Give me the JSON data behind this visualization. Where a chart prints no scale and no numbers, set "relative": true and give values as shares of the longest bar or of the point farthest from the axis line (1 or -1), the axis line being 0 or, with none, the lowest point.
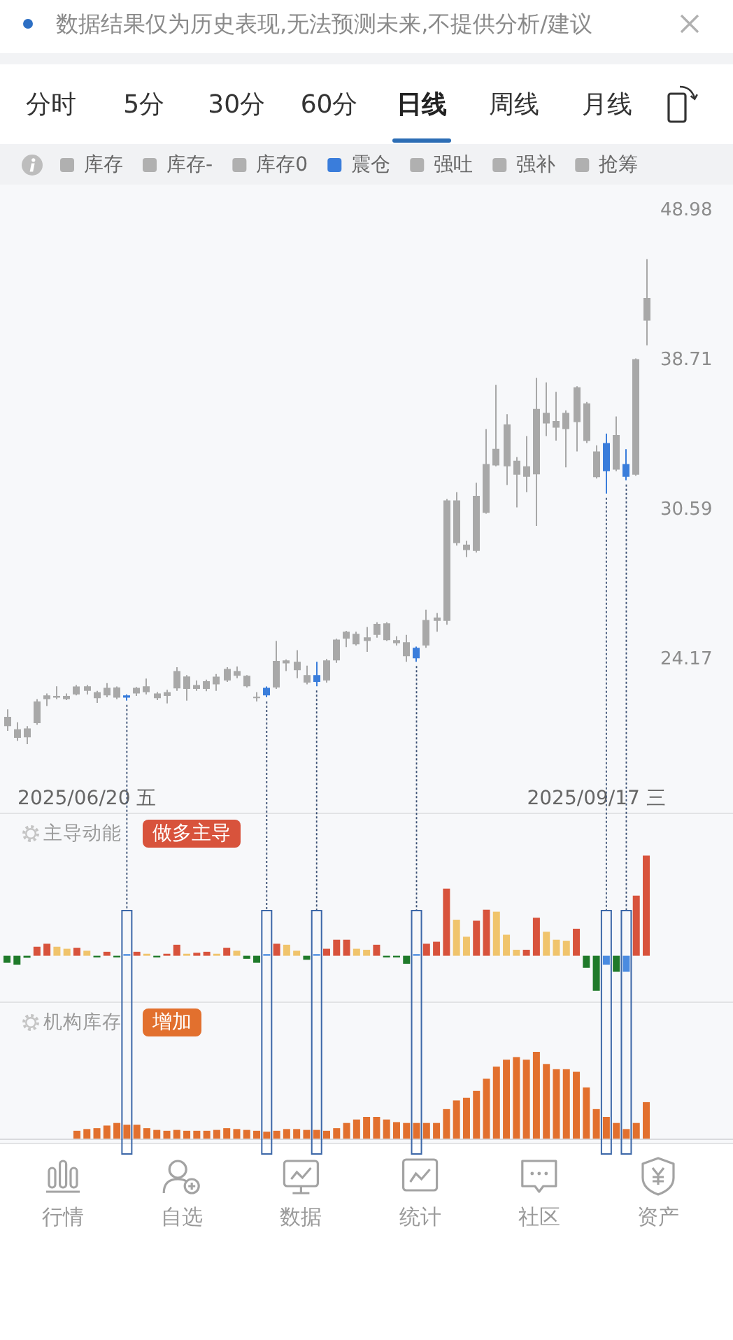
{
  "chart_data": [
    {
      "type": "other",
      "title": "数据结果仅为历史表现,无法预测未来,不提供分析/建议",
      "annotations": [
        "分时",
        "5分",
        "30分",
        "60分",
        "日线",
        "周线",
        "月线"
      ]
    },
    {
      "type": "candlestick",
      "legend": "top",
      "log": true,
      "ylim": [
        19,
        51
      ],
      "yticks": [
        24.17,
        30.59,
        38.71,
        48.98
      ],
      "categories": [
        null,
        null,
        null,
        null,
        null,
        null,
        null,
        null,
        "2025/06/20 五",
        null,
        null,
        null,
        null,
        null,
        null,
        null,
        null,
        null,
        null,
        null,
        null,
        null,
        null,
        null,
        null,
        null,
        null,
        null,
        null,
        null,
        null,
        null,
        null,
        null,
        null,
        null,
        null,
        null,
        null,
        null,
        null,
        null,
        null,
        null,
        null,
        null,
        null,
        null,
        null,
        null,
        null,
        null,
        null,
        null,
        null,
        null,
        null,
        null,
        null,
        "2025/09/17 三",
        null,
        null,
        null,
        null,
        null
      ],
      "series": [
        {
          "color": "#a8a8a8",
          "ohlc": [
            [
              21.77,
              22.35,
              21.61,
              22.09
            ],
            [
              21.37,
              21.9,
              21.27,
              21.66
            ],
            [
              21.39,
              21.77,
              21.16,
              21.69
            ],
            [
              21.87,
              22.71,
              21.82,
              22.63
            ],
            [
              22.71,
              22.92,
              22.47,
              22.85
            ],
            [
              22.77,
              23.18,
              22.71,
              22.83
            ],
            [
              22.71,
              22.92,
              22.68,
              22.83
            ],
            [
              22.88,
              23.22,
              22.85,
              23.17
            ],
            [
              23.01,
              23.22,
              22.88,
              23.18
            ],
            [
              22.75,
              23.01,
              22.58,
              22.96
            ],
            [
              22.85,
              23.29,
              22.78,
              23.12
            ],
            [
              22.77,
              23.17,
              22.71,
              23.13
            ],
            null,
            [
              22.92,
              23.15,
              22.83,
              23.12
            ],
            [
              22.96,
              23.46,
              22.88,
              23.18
            ],
            [
              22.75,
              22.97,
              22.68,
              22.92
            ],
            [
              22.83,
              23.05,
              22.56,
              22.96
            ],
            [
              23.1,
              23.88,
              23.01,
              23.74
            ],
            [
              23.08,
              23.59,
              22.66,
              23.54
            ],
            [
              23.08,
              23.39,
              23.01,
              23.22
            ],
            [
              23.08,
              23.42,
              23.0,
              23.36
            ],
            [
              23.25,
              23.63,
              23.01,
              23.53
            ],
            [
              23.39,
              23.88,
              23.34,
              23.82
            ],
            [
              23.56,
              23.91,
              23.47,
              23.74
            ],
            [
              23.18,
              23.59,
              23.13,
              23.56
            ],
            [
              22.75,
              22.96,
              22.63,
              22.8
            ],
            null,
            [
              23.13,
              24.89,
              23.08,
              24.12
            ],
            [
              24.03,
              24.17,
              23.74,
              24.14
            ],
            [
              23.77,
              24.53,
              23.47,
              24.09
            ],
            [
              23.31,
              23.94,
              23.25,
              23.59
            ],
            null,
            [
              23.39,
              24.19,
              23.31,
              24.14
            ],
            [
              24.14,
              24.98,
              24.05,
              24.94
            ],
            [
              24.98,
              25.29,
              24.65,
              25.25
            ],
            [
              24.76,
              25.25,
              24.71,
              25.17
            ],
            [
              24.89,
              25.44,
              24.47,
              25.03
            ],
            [
              25.13,
              25.63,
              25.02,
              25.57
            ],
            [
              24.92,
              25.63,
              24.89,
              25.59
            ],
            [
              24.8,
              25.07,
              24.71,
              24.92
            ],
            [
              24.3,
              25.13,
              24.09,
              24.84
            ],
            null,
            [
              24.71,
              26.14,
              24.62,
              25.72
            ],
            [
              25.69,
              26.01,
              25.25,
              25.82
            ],
            [
              25.69,
              31.11,
              25.53,
              31.04
            ],
            [
              29.03,
              31.45,
              28.92,
              31.04
            ],
            [
              28.71,
              29.13,
              28.4,
              28.96
            ],
            [
              28.67,
              31.92,
              28.6,
              31.27
            ],
            [
              30.44,
              34.73,
              30.4,
              32.87
            ],
            [
              32.8,
              37.23,
              32.75,
              33.67
            ],
            [
              32.75,
              35.55,
              31.8,
              34.99
            ],
            [
              32.32,
              33.23,
              30.7,
              33.04
            ],
            [
              32.22,
              34.35,
              31.45,
              32.75
            ],
            [
              32.34,
              37.64,
              29.82,
              35.84
            ],
            [
              35.03,
              37.37,
              34.35,
              35.63
            ],
            [
              34.8,
              36.82,
              34.1,
              35.17
            ],
            [
              34.73,
              35.76,
              32.7,
              35.63
            ],
            [
              35.11,
              37.15,
              33.53,
              37.09
            ],
            [
              34.08,
              36.24,
              33.97,
              36.16
            ],
            [
              32.2,
              33.85,
              32.13,
              33.53
            ],
            null,
            [
              32.58,
              35.42,
              32.5,
              34.4
            ],
            null,
            [
              32.32,
              38.81,
              32.27,
              38.76
            ],
            [
              41.18,
              45.36,
              39.61,
              42.68
            ]
          ]
        },
        {
          "name": "库存",
          "color": "#b0b0b0",
          "ohlc": [
            null,
            null,
            null,
            null,
            null,
            null,
            null,
            null,
            null,
            null,
            null,
            null,
            null,
            null,
            null,
            null,
            null,
            null,
            null,
            null,
            null,
            null,
            null,
            null,
            null,
            null,
            null,
            null,
            null,
            null,
            null,
            null,
            null,
            null,
            null,
            null,
            null,
            null,
            null,
            null,
            null,
            null,
            null,
            null,
            null,
            null,
            null,
            null,
            null,
            null,
            null,
            null,
            null,
            null,
            null,
            null,
            null,
            null,
            null,
            null,
            null,
            null,
            null,
            null,
            null
          ]
        },
        {
          "name": "库存-",
          "color": "#b0b0b0",
          "ohlc": [
            null,
            null,
            null,
            null,
            null,
            null,
            null,
            null,
            null,
            null,
            null,
            null,
            null,
            null,
            null,
            null,
            null,
            null,
            null,
            null,
            null,
            null,
            null,
            null,
            null,
            null,
            null,
            null,
            null,
            null,
            null,
            null,
            null,
            null,
            null,
            null,
            null,
            null,
            null,
            null,
            null,
            null,
            null,
            null,
            null,
            null,
            null,
            null,
            null,
            null,
            null,
            null,
            null,
            null,
            null,
            null,
            null,
            null,
            null,
            null,
            null,
            null,
            null,
            null,
            null
          ]
        },
        {
          "name": "库存0",
          "color": "#b0b0b0",
          "ohlc": [
            null,
            null,
            null,
            null,
            null,
            null,
            null,
            null,
            null,
            null,
            null,
            null,
            null,
            null,
            null,
            null,
            null,
            null,
            null,
            null,
            null,
            null,
            null,
            null,
            null,
            null,
            null,
            null,
            null,
            null,
            null,
            null,
            null,
            null,
            null,
            null,
            null,
            null,
            null,
            null,
            null,
            null,
            null,
            null,
            null,
            null,
            null,
            null,
            null,
            null,
            null,
            null,
            null,
            null,
            null,
            null,
            null,
            null,
            null,
            null,
            null,
            null,
            null,
            null,
            null
          ]
        },
        {
          "name": "震仓",
          "color": "#3a7ddb",
          "ohlc": [
            null,
            null,
            null,
            null,
            null,
            null,
            null,
            null,
            null,
            null,
            null,
            null,
            [
              22.77,
              22.88,
              22.66,
              22.85
            ],
            null,
            null,
            null,
            null,
            null,
            null,
            null,
            null,
            null,
            null,
            null,
            null,
            null,
            [
              22.85,
              23.17,
              22.78,
              23.12
            ],
            null,
            null,
            null,
            null,
            [
              23.34,
              24.09,
              23.18,
              23.59
            ],
            null,
            null,
            null,
            null,
            null,
            null,
            null,
            null,
            null,
            [
              24.22,
              24.67,
              24.09,
              24.62
            ],
            null,
            null,
            null,
            null,
            null,
            null,
            null,
            null,
            null,
            null,
            null,
            null,
            null,
            null,
            null,
            null,
            null,
            null,
            [
              32.5,
              34.48,
              31.38,
              33.97
            ],
            null,
            [
              32.22,
              33.65,
              32.04,
              32.87
            ],
            null,
            null
          ]
        },
        {
          "name": "强吐",
          "color": "#b0b0b0",
          "ohlc": [
            null,
            null,
            null,
            null,
            null,
            null,
            null,
            null,
            null,
            null,
            null,
            null,
            null,
            null,
            null,
            null,
            null,
            null,
            null,
            null,
            null,
            null,
            null,
            null,
            null,
            null,
            null,
            null,
            null,
            null,
            null,
            null,
            null,
            null,
            null,
            null,
            null,
            null,
            null,
            null,
            null,
            null,
            null,
            null,
            null,
            null,
            null,
            null,
            null,
            null,
            null,
            null,
            null,
            null,
            null,
            null,
            null,
            null,
            null,
            null,
            null,
            null,
            null,
            null,
            null
          ]
        },
        {
          "name": "强补",
          "color": "#b0b0b0",
          "ohlc": [
            null,
            null,
            null,
            null,
            null,
            null,
            null,
            null,
            null,
            null,
            null,
            null,
            null,
            null,
            null,
            null,
            null,
            null,
            null,
            null,
            null,
            null,
            null,
            null,
            null,
            null,
            null,
            null,
            null,
            null,
            null,
            null,
            null,
            null,
            null,
            null,
            null,
            null,
            null,
            null,
            null,
            null,
            null,
            null,
            null,
            null,
            null,
            null,
            null,
            null,
            null,
            null,
            null,
            null,
            null,
            null,
            null,
            null,
            null,
            null,
            null,
            null,
            null,
            null,
            null
          ]
        },
        {
          "name": "抢筹",
          "color": "#b0b0b0",
          "ohlc": [
            null,
            null,
            null,
            null,
            null,
            null,
            null,
            null,
            null,
            null,
            null,
            null,
            null,
            null,
            null,
            null,
            null,
            null,
            null,
            null,
            null,
            null,
            null,
            null,
            null,
            null,
            null,
            null,
            null,
            null,
            null,
            null,
            null,
            null,
            null,
            null,
            null,
            null,
            null,
            null,
            null,
            null,
            null,
            null,
            null,
            null,
            null,
            null,
            null,
            null,
            null,
            null,
            null,
            null,
            null,
            null,
            null,
            null,
            null,
            null,
            null,
            null,
            null,
            null,
            null
          ]
        }
      ]
    },
    {
      "type": "bar",
      "title": "主导动能",
      "subtitle": "做多主导",
      "relative": true,
      "categories": [
        null,
        null,
        null,
        null,
        null,
        null,
        null,
        null,
        null,
        null,
        null,
        null,
        null,
        null,
        null,
        null,
        null,
        null,
        null,
        null,
        null,
        null,
        null,
        null,
        null,
        null,
        null,
        null,
        null,
        null,
        null,
        null,
        null,
        null,
        null,
        null,
        null,
        null,
        null,
        null,
        null,
        null,
        null,
        null,
        null,
        null,
        null,
        null,
        null,
        null,
        null,
        null,
        null,
        null,
        null,
        null,
        null,
        null,
        null,
        null,
        null,
        null,
        null,
        null,
        null
      ],
      "values": [
        -0.07,
        -0.09,
        -0.02,
        0.09,
        0.12,
        0.09,
        0.07,
        0.08,
        0.05,
        -0.01,
        0.04,
        -0.01,
        0.01,
        0.04,
        0.02,
        -0.01,
        0.02,
        0.11,
        0.02,
        0.03,
        0.04,
        0.02,
        0.08,
        0.05,
        -0.03,
        -0.07,
        0.01,
        0.12,
        0.11,
        0.05,
        -0.04,
        0.01,
        0.07,
        0.16,
        0.16,
        0.07,
        0.06,
        0.11,
        -0.01,
        -0.01,
        -0.08,
        0.01,
        0.12,
        0.14,
        0.67,
        0.36,
        0.19,
        0.35,
        0.46,
        0.44,
        0.21,
        0.06,
        0.06,
        0.38,
        0.24,
        0.16,
        0.15,
        0.27,
        -0.12,
        -0.35,
        -0.09,
        -0.16,
        -0.16,
        0.6,
        1
      ],
      "colors": [
        "#1f7a2a",
        "#1f7a2a",
        "#1f7a2a",
        "#d8533c",
        "#d8533c",
        "#f0c46c",
        "#f0c46c",
        "#d8533c",
        "#f0c46c",
        "#1f7a2a",
        "#d8533c",
        "#1f7a2a",
        "#4a8be0",
        "#d8533c",
        "#f0c46c",
        "#1f7a2a",
        "#d8533c",
        "#d8533c",
        "#f0c46c",
        "#d8533c",
        "#d8533c",
        "#f0c46c",
        "#d8533c",
        "#f0c46c",
        "#1f7a2a",
        "#1f7a2a",
        "#4a8be0",
        "#d8533c",
        "#f0c46c",
        "#f0c46c",
        "#1f7a2a",
        "#4a8be0",
        "#d8533c",
        "#d8533c",
        "#d8533c",
        "#f0c46c",
        "#f0c46c",
        "#d8533c",
        "#1f7a2a",
        "#1f7a2a",
        "#1f7a2a",
        "#4a8be0",
        "#d8533c",
        "#d8533c",
        "#d8533c",
        "#f0c46c",
        "#f0c46c",
        "#d8533c",
        "#d8533c",
        "#f0c46c",
        "#f0c46c",
        "#f0c46c",
        "#d8533c",
        "#d8533c",
        "#f0c46c",
        "#f0c46c",
        "#f0c46c",
        "#d8533c",
        "#1f7a2a",
        "#1f7a2a",
        "#4a8be0",
        "#1f7a2a",
        "#4a8be0",
        "#d8533c",
        "#d8533c"
      ]
    },
    {
      "type": "bar",
      "title": "机构库存",
      "subtitle": "增加",
      "relative": true,
      "color": "#e2702e",
      "categories": [
        null,
        null,
        null,
        null,
        null,
        null,
        null,
        null,
        null,
        null,
        null,
        null,
        null,
        null,
        null,
        null,
        null,
        null,
        null,
        null,
        null,
        null,
        null,
        null,
        null,
        null,
        null,
        null,
        null,
        null,
        null,
        null,
        null,
        null,
        null,
        null,
        null,
        null,
        null,
        null,
        null,
        null,
        null,
        null,
        null,
        null,
        null,
        null,
        null,
        null,
        null,
        null,
        null,
        null,
        null,
        null,
        null,
        null,
        null,
        null,
        null,
        null,
        null,
        null,
        null
      ],
      "values": [
        null,
        null,
        null,
        null,
        null,
        null,
        null,
        0.09,
        0.11,
        0.12,
        0.15,
        0.18,
        0.16,
        0.16,
        0.12,
        0.1,
        0.09,
        0.1,
        0.09,
        0.09,
        0.09,
        0.1,
        0.12,
        0.11,
        0.1,
        0.09,
        0.08,
        0.09,
        0.11,
        0.11,
        0.1,
        0.1,
        0.09,
        0.12,
        0.18,
        0.22,
        0.25,
        0.25,
        0.22,
        0.19,
        0.18,
        0.18,
        0.18,
        0.18,
        0.34,
        0.44,
        0.47,
        0.55,
        0.69,
        0.83,
        0.91,
        0.94,
        0.91,
        1,
        0.86,
        0.8,
        0.8,
        0.77,
        0.59,
        0.34,
        0.25,
        0.18,
        0.11,
        0.18,
        0.42
      ]
    },
    {
      "type": "other",
      "annotations": [
        "行情",
        "自选",
        "数据",
        "统计",
        "社区",
        "资产"
      ]
    }
  ]
}
